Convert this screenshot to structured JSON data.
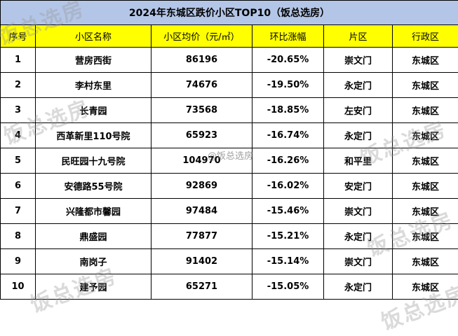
{
  "title": "2024年东城区跌价小区TOP10（饭总选房）",
  "headers": [
    "序号",
    "小区名称",
    "小区均价（元/㎡）",
    "环比涨幅",
    "片区",
    "行政区"
  ],
  "rows": [
    {
      "no": "1",
      "name": "营房西街",
      "price": "86196",
      "change": "-20.65%",
      "area": "崇文门",
      "district": "东城区"
    },
    {
      "no": "2",
      "name": "李村东里",
      "price": "74676",
      "change": "-19.50%",
      "area": "永定门",
      "district": "东城区"
    },
    {
      "no": "3",
      "name": "长青园",
      "price": "73568",
      "change": "-18.85%",
      "area": "左安门",
      "district": "东城区"
    },
    {
      "no": "4",
      "name": "西革新里110号院",
      "price": "65923",
      "change": "-16.74%",
      "area": "永定门",
      "district": "东城区"
    },
    {
      "no": "5",
      "name": "民旺园十九号院",
      "price": "104970",
      "change": "-16.26%",
      "area": "和平里",
      "district": "东城区"
    },
    {
      "no": "6",
      "name": "安德路55号院",
      "price": "92869",
      "change": "-16.02%",
      "area": "安定门",
      "district": "东城区"
    },
    {
      "no": "7",
      "name": "兴隆都市馨园",
      "price": "97484",
      "change": "-15.46%",
      "area": "崇文门",
      "district": "东城区"
    },
    {
      "no": "8",
      "name": "鼎盛园",
      "price": "77877",
      "change": "-15.21%",
      "area": "永定门",
      "district": "东城区"
    },
    {
      "no": "9",
      "name": "南岗子",
      "price": "91402",
      "change": "-15.14%",
      "area": "崇文门",
      "district": "东城区"
    },
    {
      "no": "10",
      "name": "建予园",
      "price": "65271",
      "change": "-15.05%",
      "area": "永定门",
      "district": "东城区"
    }
  ],
  "watermark": "饭总选房",
  "watermark_center": "@饭总选房"
}
